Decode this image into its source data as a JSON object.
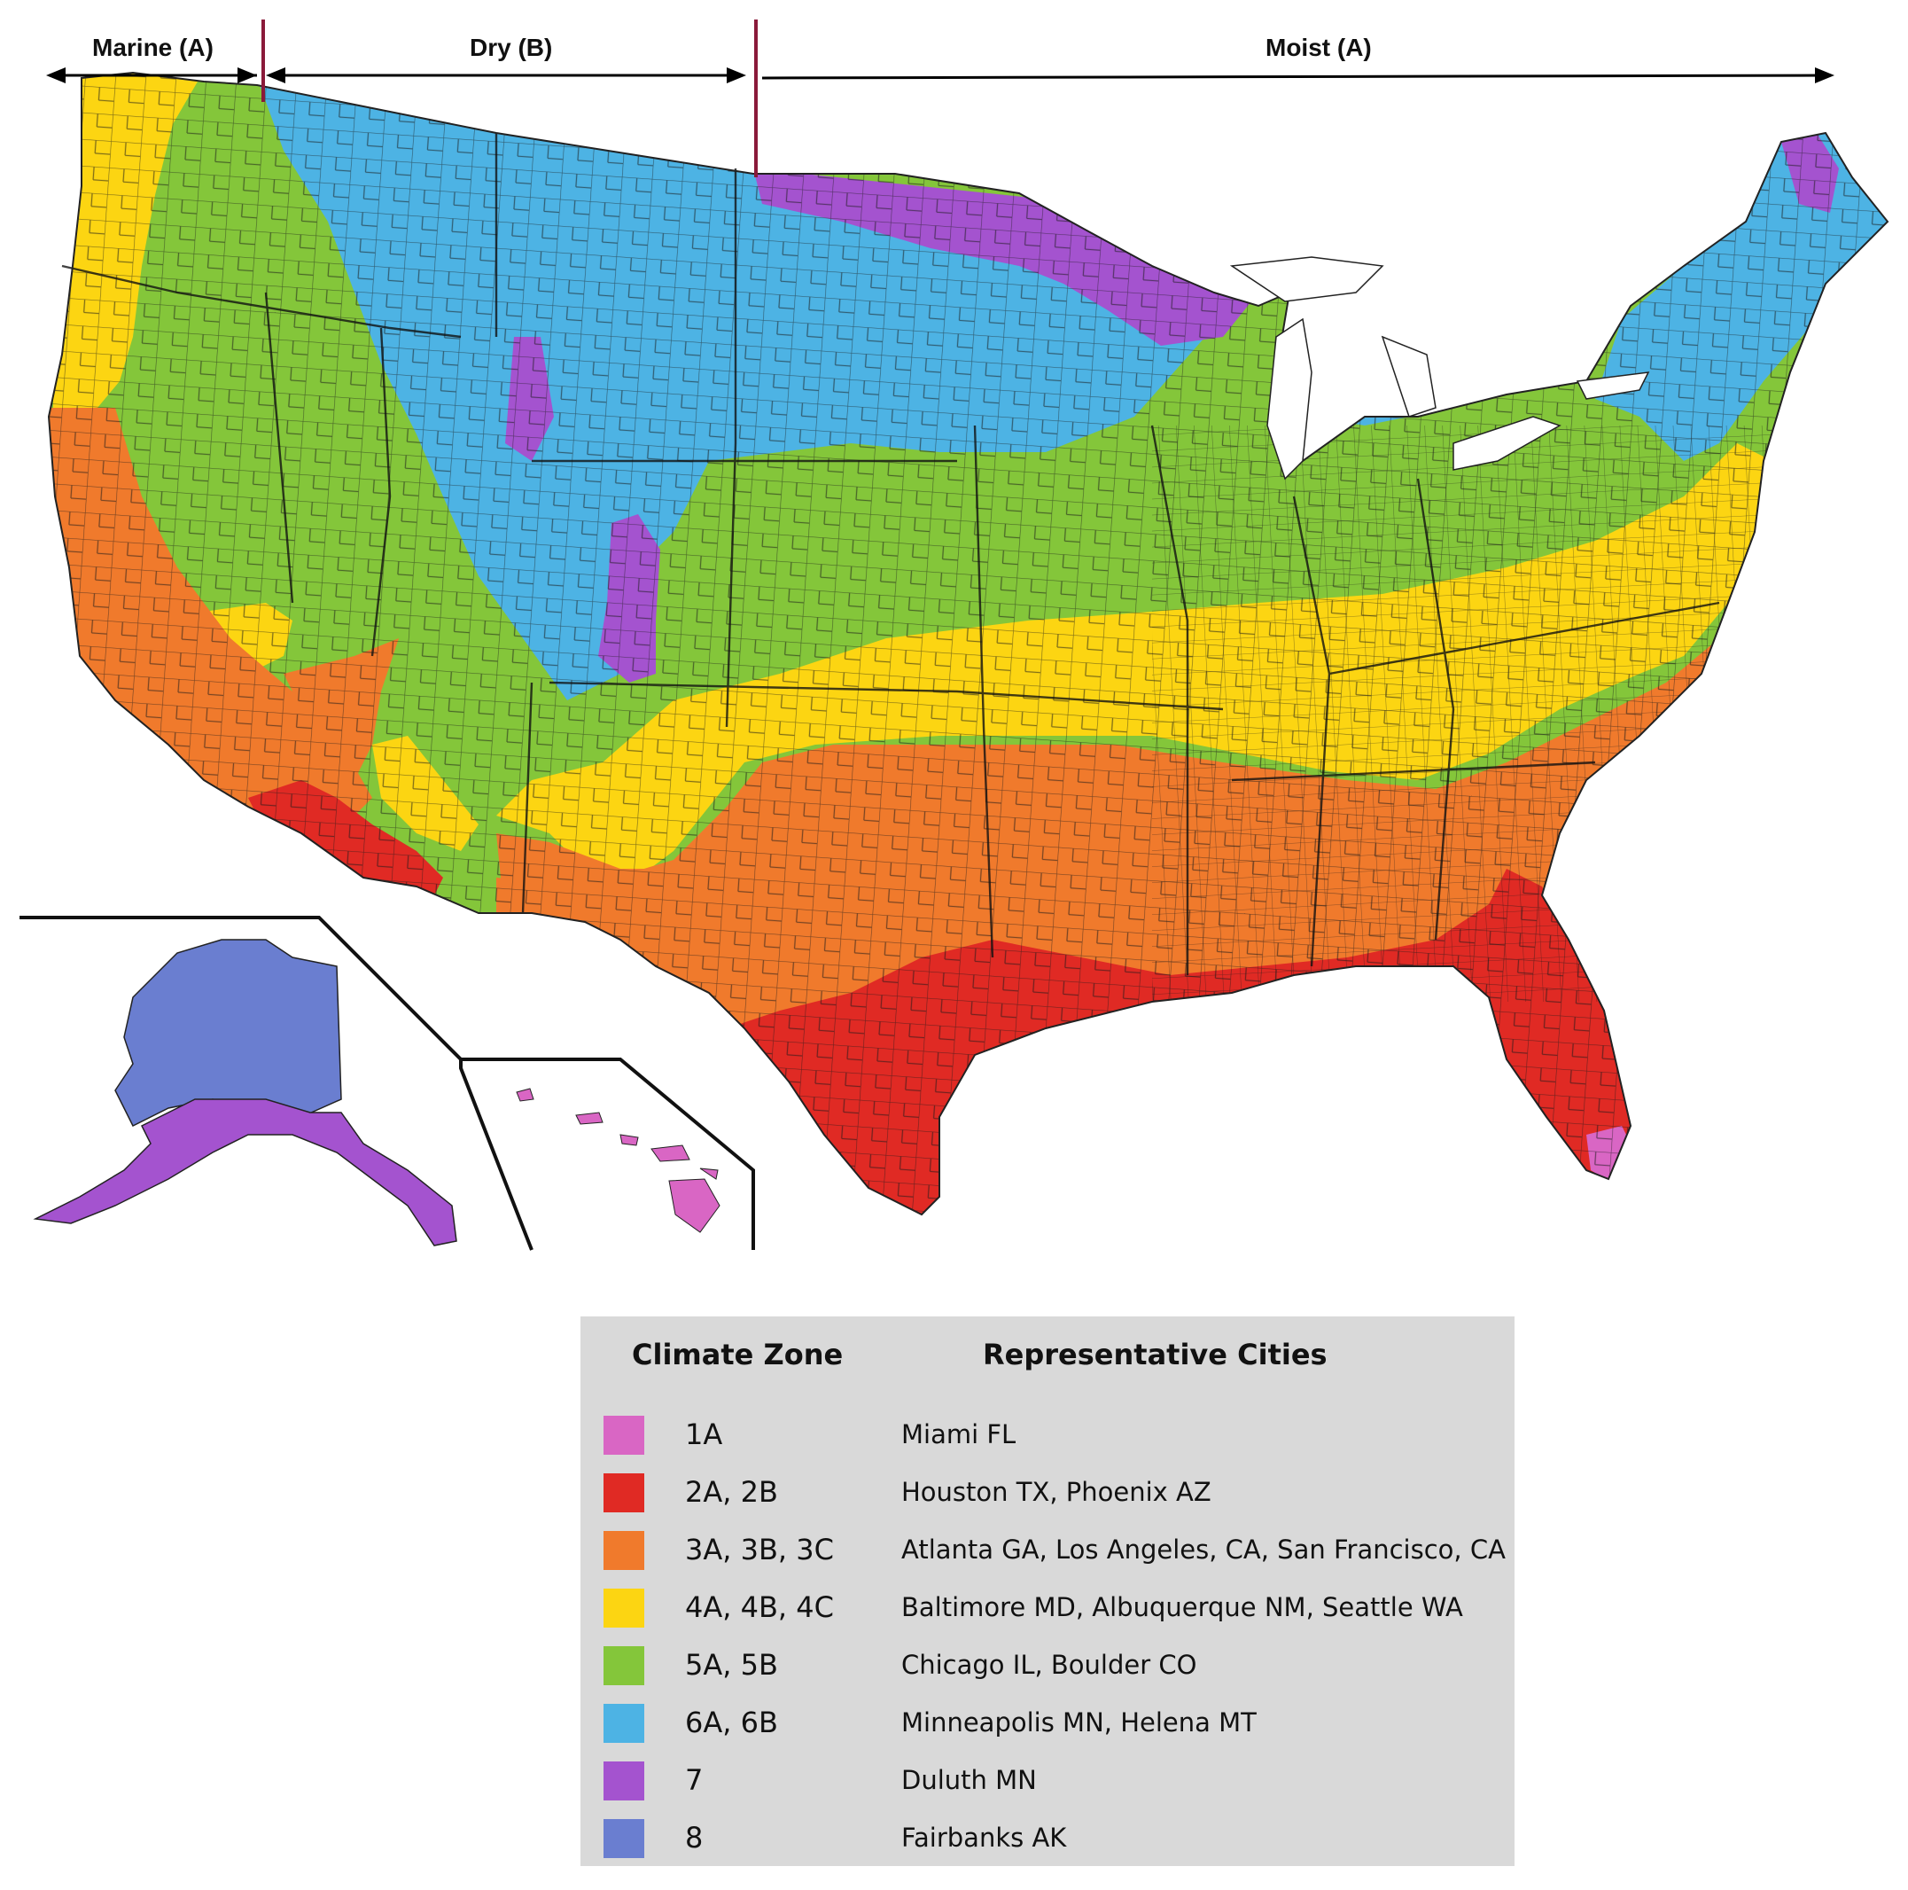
{
  "moisture_regimes": [
    {
      "label": "Marine (A)"
    },
    {
      "label": "Dry (B)"
    },
    {
      "label": "Moist (A)"
    }
  ],
  "legend": {
    "header_zone": "Climate Zone",
    "header_cities": "Representative Cities",
    "rows": [
      {
        "zone": "1A",
        "cities": "Miami FL",
        "color": "#d966c4"
      },
      {
        "zone": "2A, 2B",
        "cities": "Houston TX,  Phoenix AZ",
        "color": "#e02a24"
      },
      {
        "zone": "3A, 3B, 3C",
        "cities": "Atlanta GA, Los Angeles, CA, San Francisco, CA",
        "color": "#f07a2c"
      },
      {
        "zone": "4A, 4B, 4C",
        "cities": "Baltimore MD, Albuquerque NM, Seattle WA",
        "color": "#fcd512"
      },
      {
        "zone": "5A, 5B",
        "cities": "Chicago IL, Boulder CO",
        "color": "#84c63a"
      },
      {
        "zone": "6A, 6B",
        "cities": "Minneapolis MN, Helena MT",
        "color": "#4db3e4"
      },
      {
        "zone": "7",
        "cities": "Duluth MN",
        "color": "#a453cf"
      },
      {
        "zone": "8",
        "cities": "Fairbanks AK",
        "color": "#6a7ed0"
      }
    ]
  }
}
